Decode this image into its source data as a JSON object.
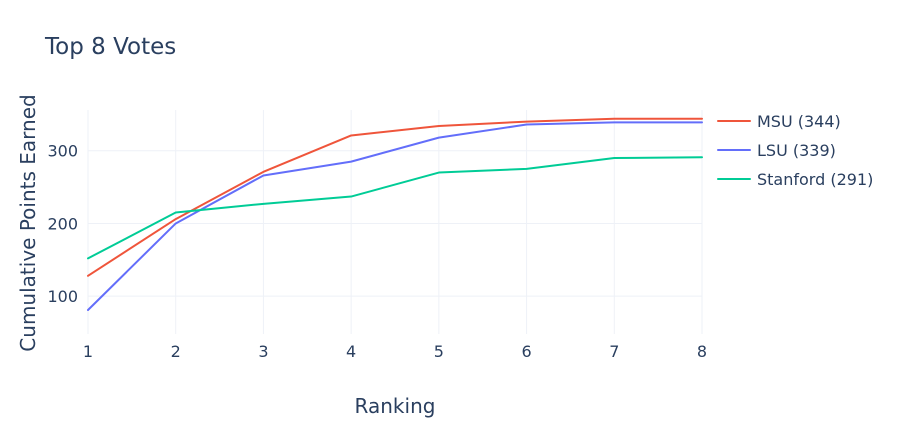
{
  "chart_data": {
    "type": "line",
    "title": "Top 8 Votes",
    "xlabel": "Ranking",
    "ylabel": "Cumulative Points Earned",
    "x": [
      1,
      2,
      3,
      4,
      5,
      6,
      7,
      8
    ],
    "xlim": [
      1,
      8
    ],
    "ylim": [
      48,
      356
    ],
    "xticks": [
      1,
      2,
      3,
      4,
      5,
      6,
      7,
      8
    ],
    "yticks": [
      100,
      200,
      300
    ],
    "grid": true,
    "legend_position": "right",
    "series": [
      {
        "name": "MSU (344)",
        "color": "#EF553B",
        "values": [
          128,
          206,
          271,
          321,
          334,
          340,
          344,
          344
        ]
      },
      {
        "name": "LSU (339)",
        "color": "#636EFA",
        "values": [
          81,
          200,
          266,
          285,
          318,
          336,
          339,
          339
        ]
      },
      {
        "name": "Stanford (291)",
        "color": "#00CC96",
        "values": [
          152,
          215,
          227,
          237,
          270,
          275,
          290,
          291
        ]
      }
    ]
  }
}
